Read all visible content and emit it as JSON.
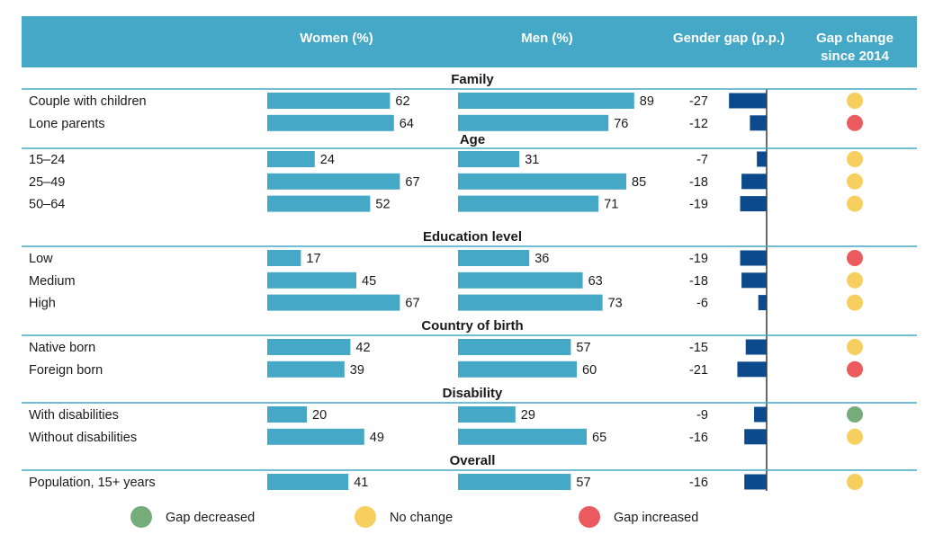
{
  "chart_data": {
    "type": "bar",
    "headers": {
      "women": "Women (%)",
      "men": "Men (%)",
      "gap": "Gender gap (p.p.)",
      "change_line1": "Gap change",
      "change_line2": "since 2014"
    },
    "groups": [
      {
        "name": "Family",
        "rows": [
          {
            "label": "Couple with children",
            "women": 62,
            "men": 89,
            "gap": -27,
            "change": "No change"
          },
          {
            "label": "Lone parents",
            "women": 64,
            "men": 76,
            "gap": -12,
            "change": "Gap increased"
          }
        ]
      },
      {
        "name": "Age",
        "rows": [
          {
            "label": "15–24",
            "women": 24,
            "men": 31,
            "gap": -7,
            "change": "No change"
          },
          {
            "label": "25–49",
            "women": 67,
            "men": 85,
            "gap": -18,
            "change": "No change"
          },
          {
            "label": "50–64",
            "women": 52,
            "men": 71,
            "gap": -19,
            "change": "No change"
          }
        ]
      },
      {
        "name": "Education level",
        "rows": [
          {
            "label": "Low",
            "women": 17,
            "men": 36,
            "gap": -19,
            "change": "Gap increased"
          },
          {
            "label": "Medium",
            "women": 45,
            "men": 63,
            "gap": -18,
            "change": "No change"
          },
          {
            "label": "High",
            "women": 67,
            "men": 73,
            "gap": -6,
            "change": "No change"
          }
        ]
      },
      {
        "name": "Country of birth",
        "rows": [
          {
            "label": "Native born",
            "women": 42,
            "men": 57,
            "gap": -15,
            "change": "No change"
          },
          {
            "label": "Foreign born",
            "women": 39,
            "men": 60,
            "gap": -21,
            "change": "Gap increased"
          }
        ]
      },
      {
        "name": "Disability",
        "rows": [
          {
            "label": "With disabilities",
            "women": 20,
            "men": 29,
            "gap": -9,
            "change": "Gap decreased"
          },
          {
            "label": "Without disabilities",
            "women": 49,
            "men": 65,
            "gap": -16,
            "change": "No change"
          }
        ]
      },
      {
        "name": "Overall",
        "rows": [
          {
            "label": "Population, 15+ years",
            "women": 41,
            "men": 57,
            "gap": -16,
            "change": "No change"
          }
        ]
      }
    ],
    "legend": [
      {
        "label": "Gap decreased",
        "color": "#76ab7a"
      },
      {
        "label": "No change",
        "color": "#f6cf5f"
      },
      {
        "label": "Gap increased",
        "color": "#ea5a5e"
      }
    ],
    "colors": {
      "header_bg": "#46a8c7",
      "bar": "#46a8c7",
      "gap_bar": "#0d4a8c",
      "rule": "#46a8c7"
    }
  }
}
